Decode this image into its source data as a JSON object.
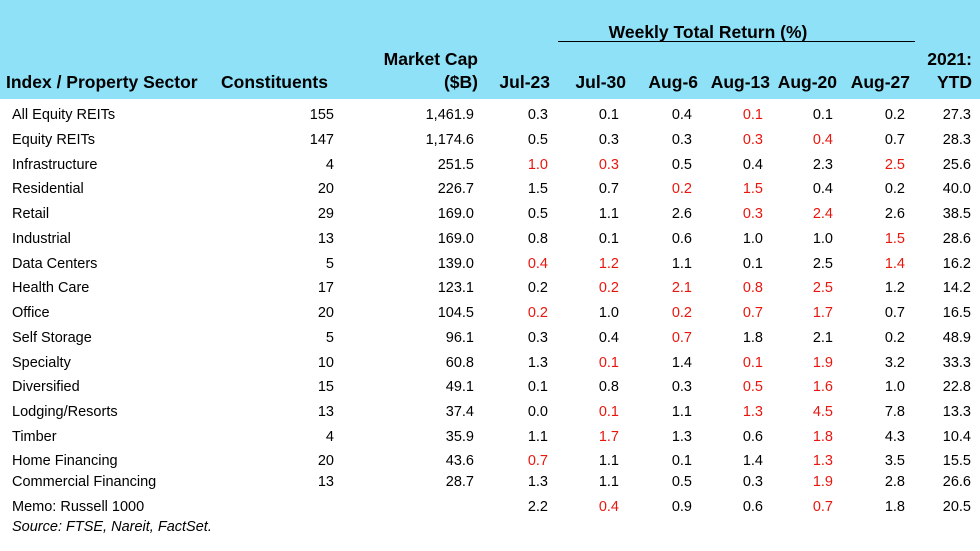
{
  "header": {
    "sector": "Index / Property Sector",
    "constituents": "Constituents",
    "market_cap_line1": "Market Cap",
    "market_cap_line2": "($B)",
    "group": "Weekly Total Return (%)",
    "weeks": [
      "Jul-23",
      "Jul-30",
      "Aug-6",
      "Aug-13",
      "Aug-20",
      "Aug-27"
    ],
    "ytd_line1": "2021:",
    "ytd_line2": "YTD"
  },
  "colors": {
    "header_bg": "#8ee1f7",
    "negative": "#e8170e"
  },
  "rows": [
    {
      "name": "All Equity REITs",
      "constituents": "155",
      "cap": "1,461.9",
      "weeks": [
        "0.3",
        "0.1",
        "0.4",
        "0.1",
        "0.1",
        "0.2"
      ],
      "neg": [
        false,
        false,
        false,
        true,
        false,
        false
      ],
      "ytd": "27.3"
    },
    {
      "name": "Equity REITs",
      "constituents": "147",
      "cap": "1,174.6",
      "weeks": [
        "0.5",
        "0.3",
        "0.3",
        "0.3",
        "0.4",
        "0.7"
      ],
      "neg": [
        false,
        false,
        false,
        true,
        true,
        false
      ],
      "ytd": "28.3"
    },
    {
      "name": "Infrastructure",
      "constituents": "4",
      "cap": "251.5",
      "weeks": [
        "1.0",
        "0.3",
        "0.5",
        "0.4",
        "2.3",
        "2.5"
      ],
      "neg": [
        true,
        true,
        false,
        false,
        false,
        true
      ],
      "ytd": "25.6"
    },
    {
      "name": "Residential",
      "constituents": "20",
      "cap": "226.7",
      "weeks": [
        "1.5",
        "0.7",
        "0.2",
        "1.5",
        "0.4",
        "0.2"
      ],
      "neg": [
        false,
        false,
        true,
        true,
        false,
        false
      ],
      "ytd": "40.0"
    },
    {
      "name": "Retail",
      "constituents": "29",
      "cap": "169.0",
      "weeks": [
        "0.5",
        "1.1",
        "2.6",
        "0.3",
        "2.4",
        "2.6"
      ],
      "neg": [
        false,
        false,
        false,
        true,
        true,
        false
      ],
      "ytd": "38.5"
    },
    {
      "name": "Industrial",
      "constituents": "13",
      "cap": "169.0",
      "weeks": [
        "0.8",
        "0.1",
        "0.6",
        "1.0",
        "1.0",
        "1.5"
      ],
      "neg": [
        false,
        false,
        false,
        false,
        false,
        true
      ],
      "ytd": "28.6"
    },
    {
      "name": "Data Centers",
      "constituents": "5",
      "cap": "139.0",
      "weeks": [
        "0.4",
        "1.2",
        "1.1",
        "0.1",
        "2.5",
        "1.4"
      ],
      "neg": [
        true,
        true,
        false,
        false,
        false,
        true
      ],
      "ytd": "16.2"
    },
    {
      "name": "Health Care",
      "constituents": "17",
      "cap": "123.1",
      "weeks": [
        "0.2",
        "0.2",
        "2.1",
        "0.8",
        "2.5",
        "1.2"
      ],
      "neg": [
        false,
        true,
        true,
        true,
        true,
        false
      ],
      "ytd": "14.2"
    },
    {
      "name": "Office",
      "constituents": "20",
      "cap": "104.5",
      "weeks": [
        "0.2",
        "1.0",
        "0.2",
        "0.7",
        "1.7",
        "0.7"
      ],
      "neg": [
        true,
        false,
        true,
        true,
        true,
        false
      ],
      "ytd": "16.5"
    },
    {
      "name": "Self Storage",
      "constituents": "5",
      "cap": "96.1",
      "weeks": [
        "0.3",
        "0.4",
        "0.7",
        "1.8",
        "2.1",
        "0.2"
      ],
      "neg": [
        false,
        false,
        true,
        false,
        false,
        false
      ],
      "ytd": "48.9"
    },
    {
      "name": "Specialty",
      "constituents": "10",
      "cap": "60.8",
      "weeks": [
        "1.3",
        "0.1",
        "1.4",
        "0.1",
        "1.9",
        "3.2"
      ],
      "neg": [
        false,
        true,
        false,
        true,
        true,
        false
      ],
      "ytd": "33.3"
    },
    {
      "name": "Diversified",
      "constituents": "15",
      "cap": "49.1",
      "weeks": [
        "0.1",
        "0.8",
        "0.3",
        "0.5",
        "1.6",
        "1.0"
      ],
      "neg": [
        false,
        false,
        false,
        true,
        true,
        false
      ],
      "ytd": "22.8"
    },
    {
      "name": "Lodging/Resorts",
      "constituents": "13",
      "cap": "37.4",
      "weeks": [
        "0.0",
        "0.1",
        "1.1",
        "1.3",
        "4.5",
        "7.8"
      ],
      "neg": [
        false,
        true,
        false,
        true,
        true,
        false
      ],
      "ytd": "13.3"
    },
    {
      "name": "Timber",
      "constituents": "4",
      "cap": "35.9",
      "weeks": [
        "1.1",
        "1.7",
        "1.3",
        "0.6",
        "1.8",
        "4.3"
      ],
      "neg": [
        false,
        true,
        false,
        false,
        true,
        false
      ],
      "ytd": "10.4"
    },
    {
      "name": "Home Financing",
      "constituents": "20",
      "cap": "43.6",
      "weeks": [
        "0.7",
        "1.1",
        "0.1",
        "1.4",
        "1.3",
        "3.5"
      ],
      "neg": [
        true,
        false,
        false,
        false,
        true,
        false
      ],
      "ytd": "15.5"
    },
    {
      "name": "Commercial Financing",
      "constituents": "13",
      "cap": "28.7",
      "weeks": [
        "1.3",
        "1.1",
        "0.5",
        "0.3",
        "1.9",
        "2.8"
      ],
      "neg": [
        false,
        false,
        false,
        false,
        true,
        false
      ],
      "ytd": "26.6"
    },
    {
      "name": "Memo: Russell 1000",
      "constituents": "",
      "cap": "",
      "weeks": [
        "2.2",
        "0.4",
        "0.9",
        "0.6",
        "0.7",
        "1.8"
      ],
      "neg": [
        false,
        true,
        false,
        false,
        true,
        false
      ],
      "ytd": "20.5"
    }
  ],
  "source": "Source: FTSE, Nareit, FactSet."
}
